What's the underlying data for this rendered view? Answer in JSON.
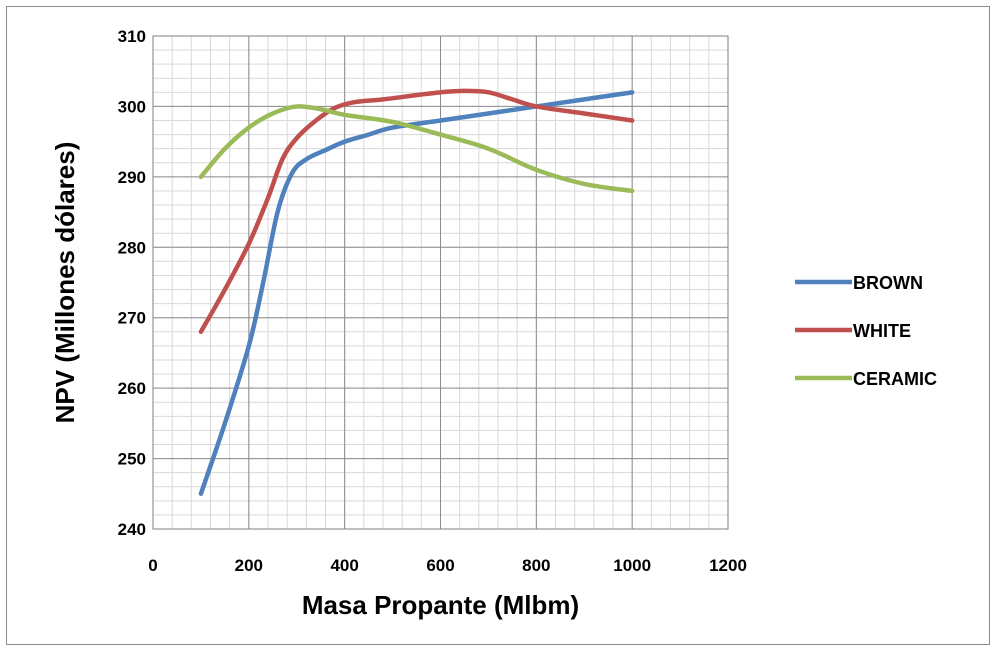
{
  "chart_data": {
    "type": "line",
    "title": "",
    "xlabel": "Masa Propante (Mlbm)",
    "ylabel": "NPV (Millones dólares)",
    "xlim": [
      0,
      1200
    ],
    "ylim": [
      240,
      310
    ],
    "xticks": [
      "0",
      "200",
      "400",
      "600",
      "800",
      "1000",
      "1200"
    ],
    "yticks": [
      "240",
      "250",
      "260",
      "270",
      "280",
      "290",
      "300",
      "310"
    ],
    "x_major_step": 200,
    "y_major_step": 10,
    "x_minor_step": 40,
    "y_minor_step": 2,
    "grid": true,
    "legend_position": "right",
    "series": [
      {
        "name": "BROWN",
        "color": "#4f81bd",
        "points": [
          [
            100,
            245
          ],
          [
            150,
            255
          ],
          [
            200,
            266
          ],
          [
            230,
            275
          ],
          [
            260,
            285
          ],
          [
            290,
            290.5
          ],
          [
            320,
            292.5
          ],
          [
            360,
            293.8
          ],
          [
            400,
            295
          ],
          [
            450,
            296
          ],
          [
            500,
            297
          ],
          [
            600,
            298
          ],
          [
            700,
            299
          ],
          [
            800,
            300
          ],
          [
            900,
            301
          ],
          [
            1000,
            302
          ]
        ]
      },
      {
        "name": "WHITE",
        "color": "#c0504d",
        "points": [
          [
            100,
            268
          ],
          [
            150,
            274
          ],
          [
            200,
            280.5
          ],
          [
            240,
            287
          ],
          [
            270,
            292.5
          ],
          [
            300,
            295.5
          ],
          [
            340,
            298
          ],
          [
            380,
            299.8
          ],
          [
            420,
            300.6
          ],
          [
            480,
            301
          ],
          [
            550,
            301.6
          ],
          [
            600,
            302
          ],
          [
            650,
            302.2
          ],
          [
            700,
            302
          ],
          [
            750,
            301
          ],
          [
            800,
            300
          ],
          [
            900,
            299
          ],
          [
            1000,
            298
          ]
        ]
      },
      {
        "name": "CERAMIC",
        "color": "#9bbb59",
        "points": [
          [
            100,
            290
          ],
          [
            150,
            294
          ],
          [
            200,
            297
          ],
          [
            250,
            299
          ],
          [
            300,
            300
          ],
          [
            350,
            299.6
          ],
          [
            400,
            298.8
          ],
          [
            500,
            297.8
          ],
          [
            600,
            296
          ],
          [
            700,
            294
          ],
          [
            800,
            291
          ],
          [
            900,
            289
          ],
          [
            1000,
            288
          ]
        ]
      }
    ]
  }
}
